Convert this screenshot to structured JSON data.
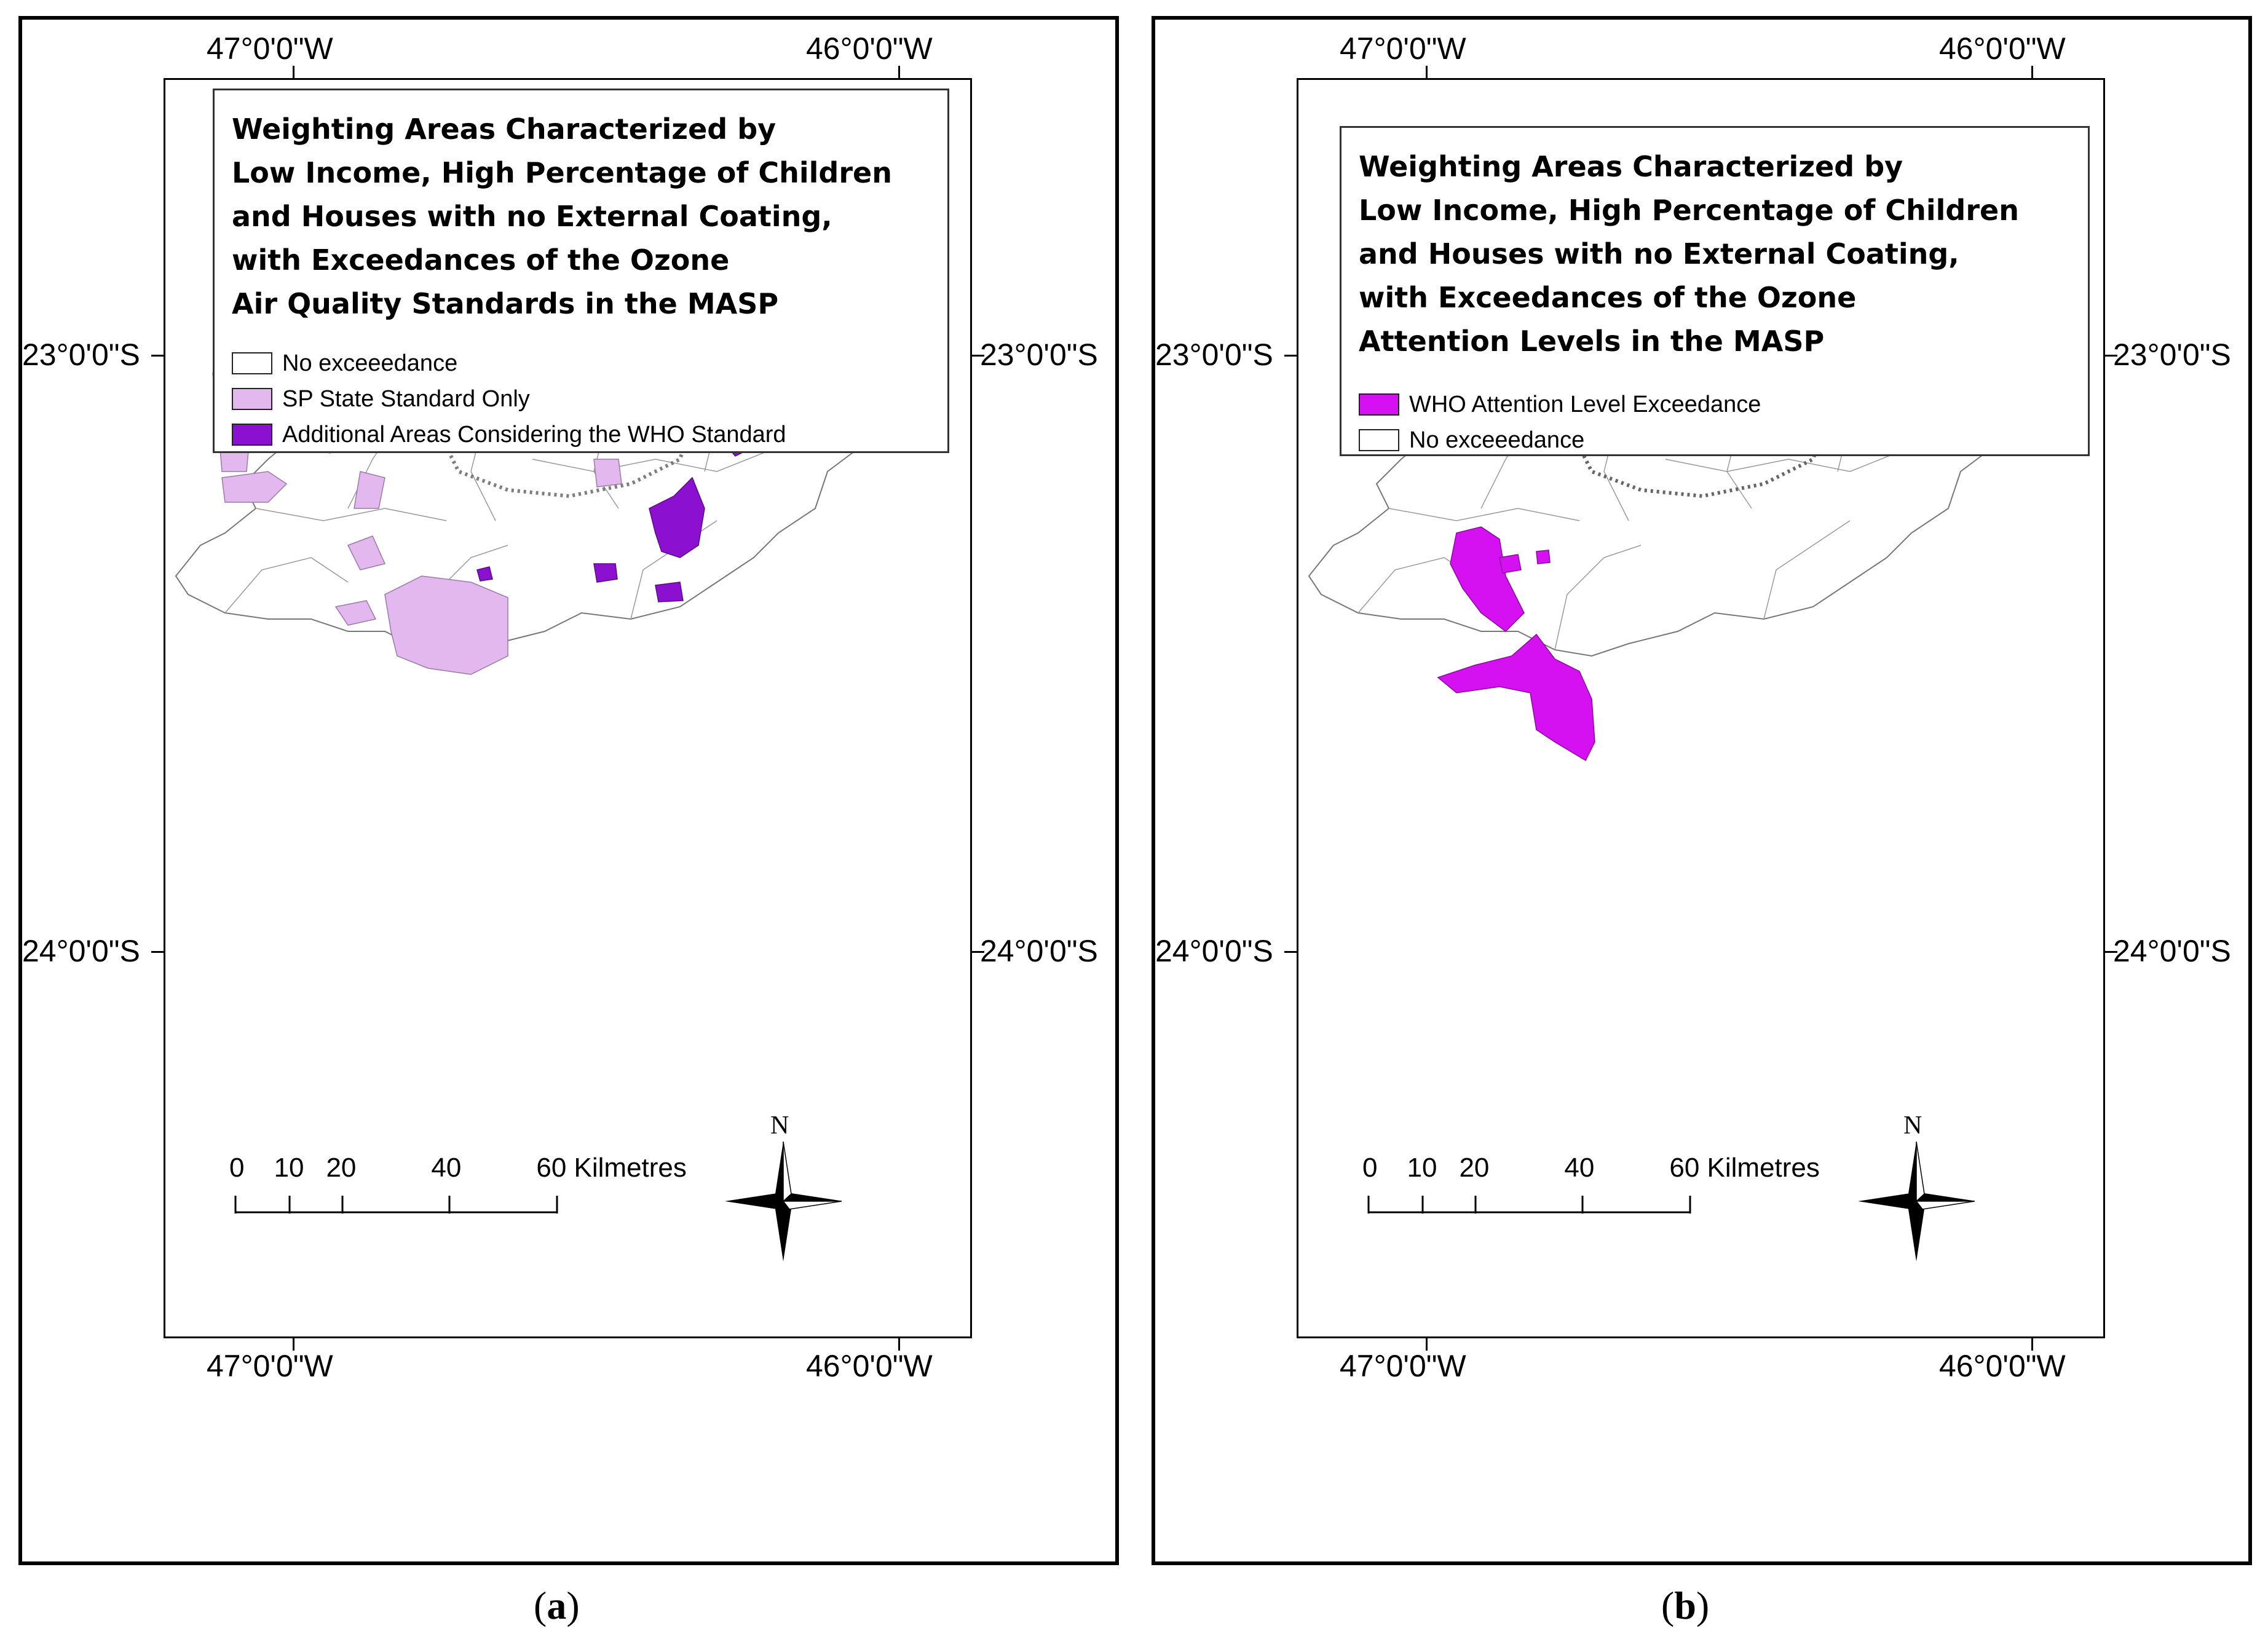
{
  "panels": [
    {
      "id": "a",
      "caption_letter": "a",
      "longitudes": [
        "47°0'0\"W",
        "46°0'0\"W"
      ],
      "latitudes": [
        "23°0'0\"S",
        "24°0'0\"S"
      ],
      "legend_title": [
        "Weighting Areas Characterized by",
        "Low Income, High Percentage of Children",
        "and Houses with no External Coating,",
        "with Exceedances of the Ozone",
        "Air Quality Standards in the MASP"
      ],
      "legend_items": [
        {
          "label": "No exceeedance",
          "color": "#ffffff"
        },
        {
          "label": "SP State Standard Only",
          "color": "#e2b8ee"
        },
        {
          "label": "Additional Areas Considering the WHO Standard",
          "color": "#8c10d0"
        }
      ],
      "scale": {
        "ticks": [
          "0",
          "10",
          "20",
          "40",
          "60"
        ],
        "unit": "Kilmetres"
      },
      "north_label": "N"
    },
    {
      "id": "b",
      "caption_letter": "b",
      "longitudes": [
        "47°0'0\"W",
        "46°0'0\"W"
      ],
      "latitudes": [
        "23°0'0\"S",
        "24°0'0\"S"
      ],
      "legend_title": [
        "Weighting Areas Characterized by",
        "Low Income, High Percentage of Children",
        "and Houses with no External Coating,",
        "with Exceedances of the Ozone",
        "Attention Levels in the MASP"
      ],
      "legend_items": [
        {
          "label": "WHO Attention Level Exceedance",
          "color": "#d511f2"
        },
        {
          "label": "No exceeedance",
          "color": "#ffffff"
        }
      ],
      "scale": {
        "ticks": [
          "0",
          "10",
          "20",
          "40",
          "60"
        ],
        "unit": "Kilmetres"
      },
      "north_label": "N"
    }
  ]
}
